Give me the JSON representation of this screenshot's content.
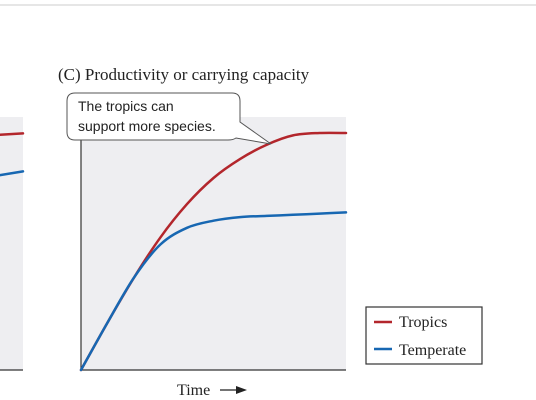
{
  "colors": {
    "tropics": "#b3262c",
    "temperate": "#1767b2",
    "plot_bg": "#eeeef1",
    "axis": "#333333"
  },
  "chart_data": [
    {
      "type": "line",
      "panel": "left-partial",
      "series": [
        {
          "name": "Tropics",
          "color": "#b3262c",
          "x": [
            0.75,
            1.0
          ],
          "y": [
            0.93,
            0.935
          ]
        },
        {
          "name": "Temperate",
          "color": "#1767b2",
          "x": [
            0.75,
            1.0
          ],
          "y": [
            0.77,
            0.785
          ]
        }
      ],
      "xlim": [
        0,
        1
      ],
      "ylim": [
        0,
        1
      ],
      "grid": false
    },
    {
      "type": "line",
      "title": "(C)  Productivity or carrying capacity",
      "xlabel": "Time",
      "ylabel": "",
      "xlim": [
        0,
        1
      ],
      "ylim": [
        0,
        1
      ],
      "grid": false,
      "legend_placement": "outside-right",
      "annotation": {
        "line1": "The tropics can",
        "line2": "support more species."
      },
      "series": [
        {
          "name": "Tropics",
          "color": "#b3262c",
          "x": [
            0,
            0.1,
            0.2,
            0.3,
            0.4,
            0.5,
            0.6,
            0.7,
            0.8,
            0.9,
            1.0
          ],
          "y": [
            0,
            0.2,
            0.39,
            0.56,
            0.7,
            0.81,
            0.89,
            0.95,
            0.99,
            1.0,
            1.0
          ]
        },
        {
          "name": "Temperate",
          "color": "#1767b2",
          "x": [
            0,
            0.1,
            0.2,
            0.3,
            0.4,
            0.5,
            0.6,
            0.7,
            0.8,
            0.9,
            1.0
          ],
          "y": [
            0,
            0.2,
            0.39,
            0.53,
            0.6,
            0.63,
            0.645,
            0.65,
            0.655,
            0.66,
            0.665
          ]
        }
      ]
    }
  ]
}
